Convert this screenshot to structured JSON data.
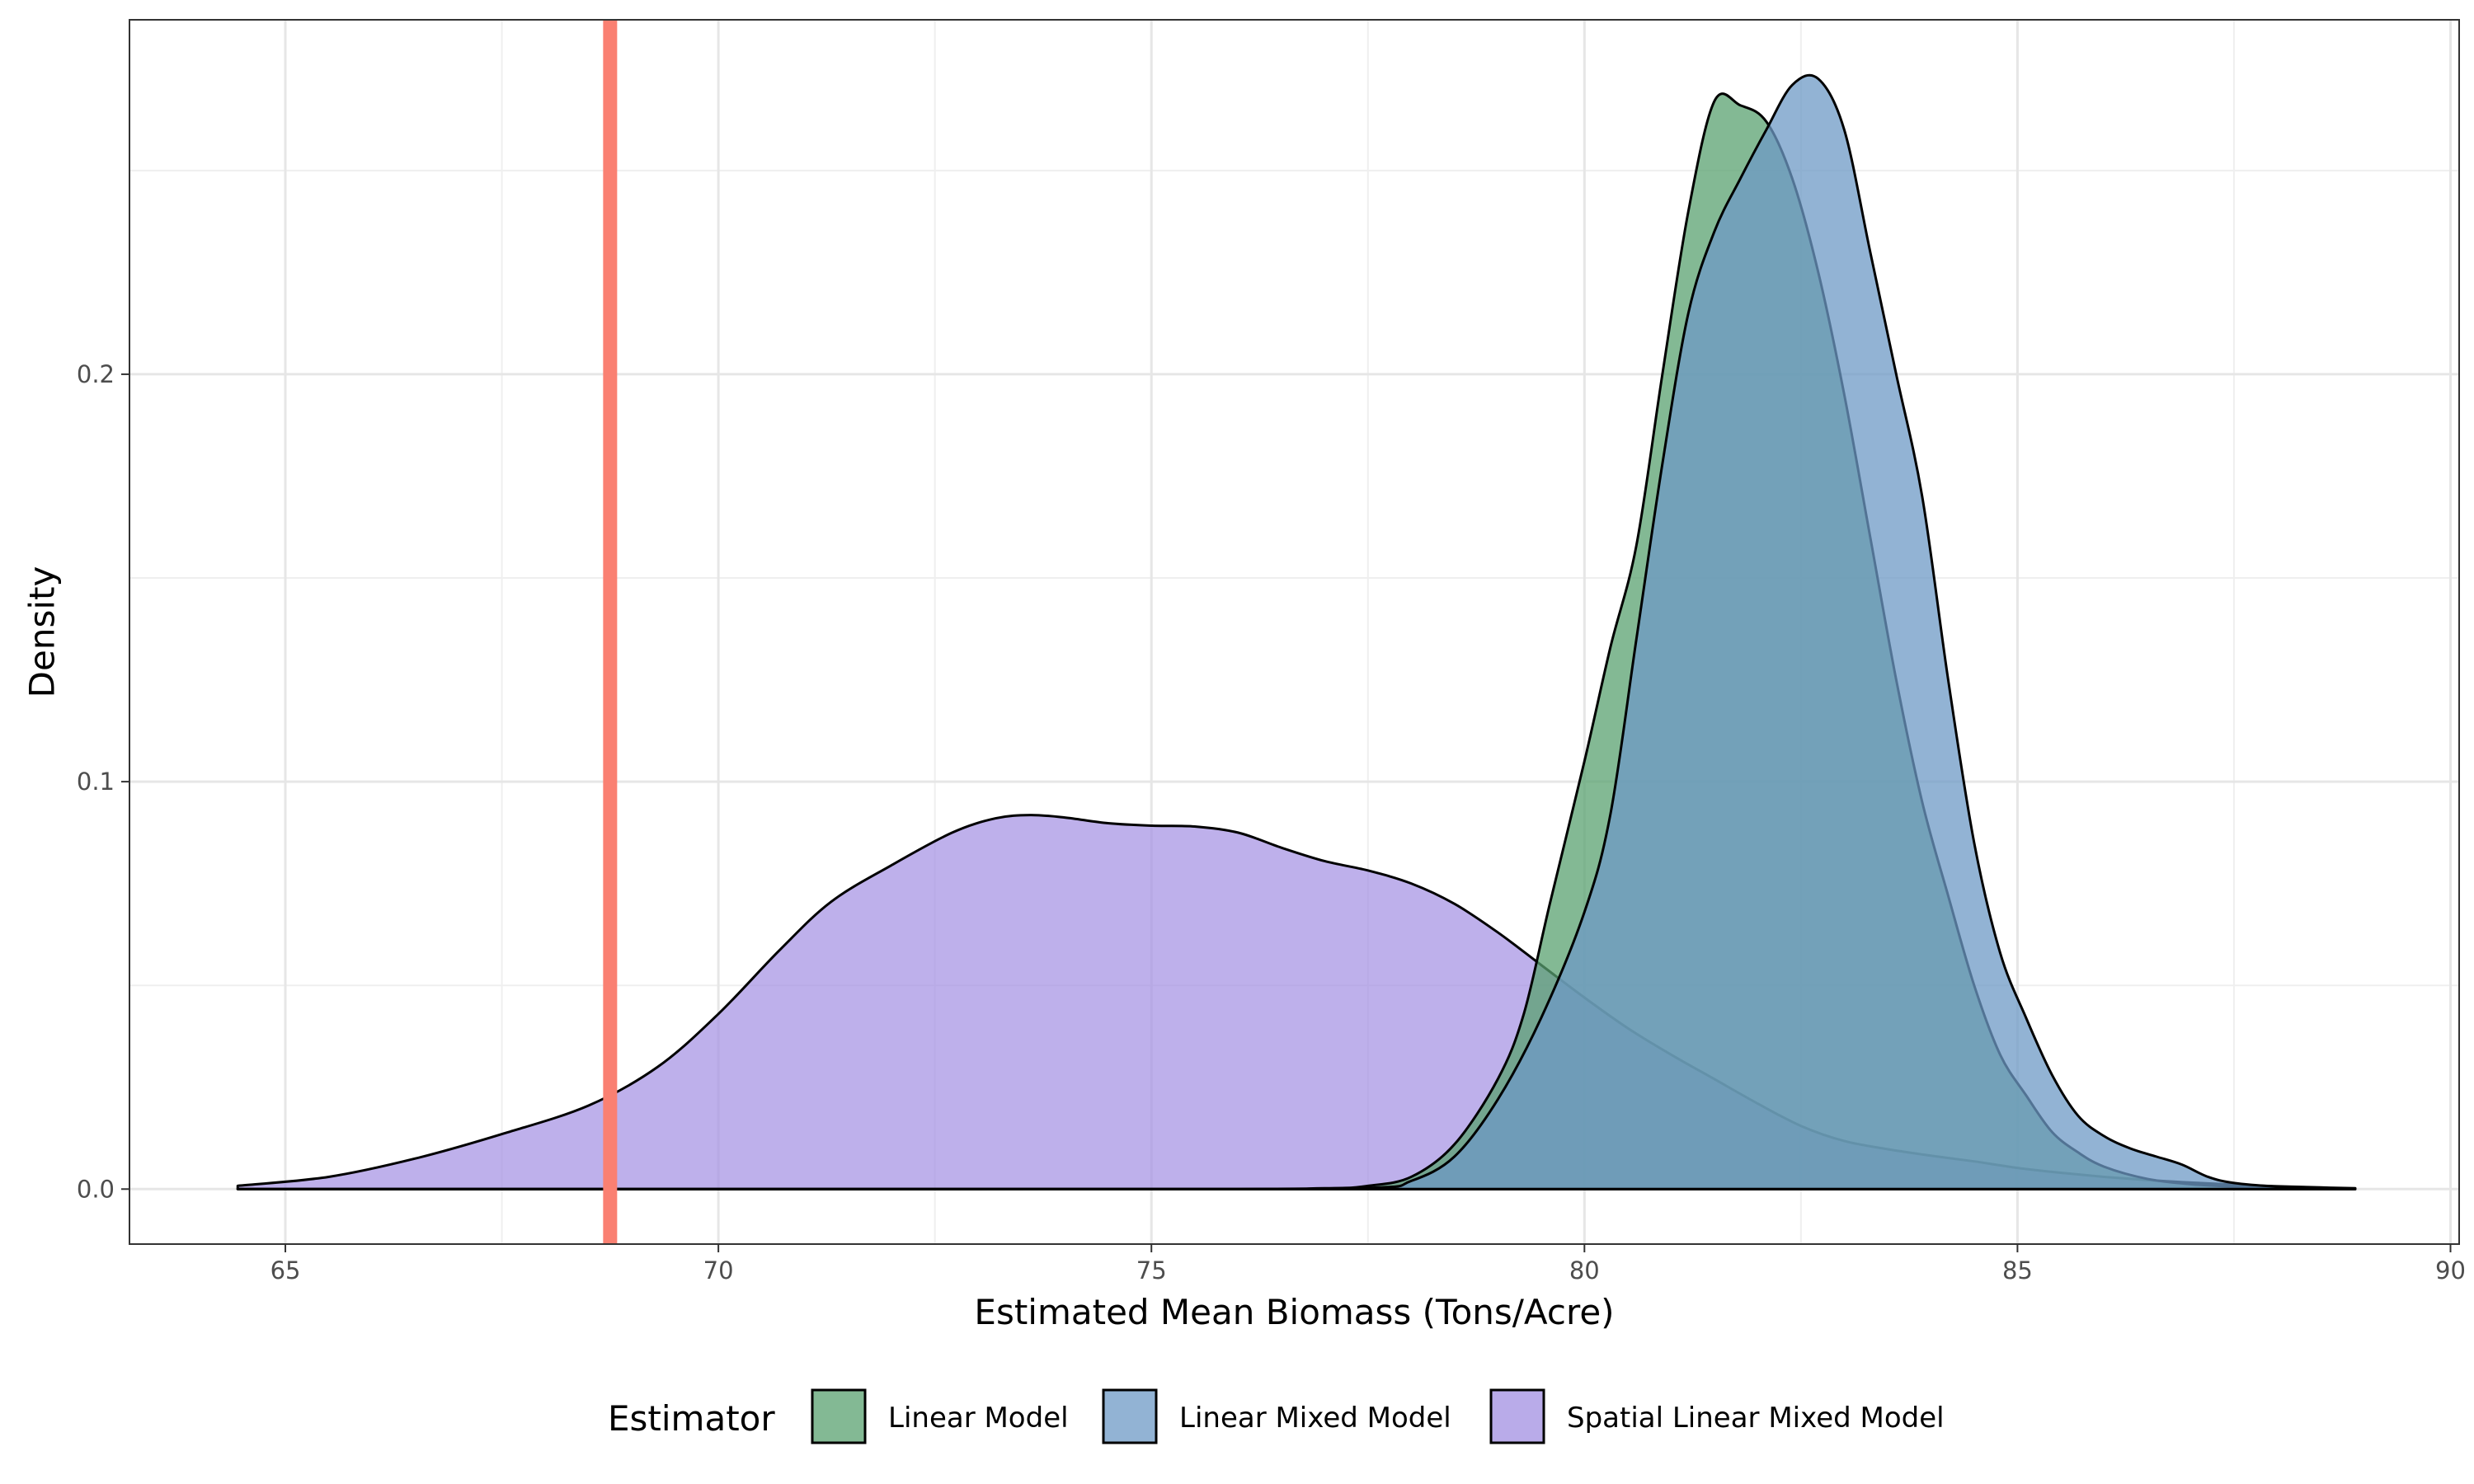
{
  "chart_data": {
    "type": "area",
    "xlabel": "Estimated Mean Biomass (Tons/Acre)",
    "ylabel": "Density",
    "xlim": [
      63.2,
      90.1
    ],
    "ylim": [
      -0.0135,
      0.287
    ],
    "x_ticks": [
      65,
      70,
      75,
      80,
      85,
      90
    ],
    "x_tick_labels": [
      "65",
      "70",
      "75",
      "80",
      "85",
      "90"
    ],
    "y_ticks": [
      0.0,
      0.1,
      0.2
    ],
    "y_tick_labels": [
      "0.0",
      "0.1",
      "0.2"
    ],
    "x_minor_ticks": [
      67.5,
      72.5,
      77.5,
      82.5,
      87.5
    ],
    "y_minor_ticks": [
      0.05,
      0.15,
      0.25
    ],
    "grid": true,
    "reference_line": {
      "x": 68.75,
      "color": "#fa8072"
    },
    "legend": {
      "title": "Estimator",
      "placement": "bottom",
      "entries": [
        {
          "label": "Linear Model",
          "color": "#59a170"
        },
        {
          "label": "Linear Mixed Model",
          "color": "#6d99c5"
        },
        {
          "label": "Spatial Linear Mixed Model",
          "color": "#a28fe2"
        }
      ]
    },
    "series": [
      {
        "name": "Spatial Linear Mixed Model",
        "color": "#a28fe2",
        "opacity": 0.7,
        "x": [
          64.45,
          65.5,
          66.5,
          67.5,
          68.5,
          69.3,
          70.0,
          70.7,
          71.3,
          72.0,
          72.7,
          73.2,
          73.6,
          74.0,
          74.5,
          75.0,
          75.5,
          76.0,
          76.5,
          77.0,
          77.5,
          78.0,
          78.5,
          79.0,
          79.5,
          80.0,
          80.5,
          81.0,
          81.5,
          82.0,
          82.5,
          83.0,
          83.5,
          84.0,
          84.5,
          85.0,
          85.5,
          86.0,
          86.5,
          87.0,
          87.5,
          88.0,
          88.5,
          88.9
        ],
        "y": [
          0.0008,
          0.003,
          0.0075,
          0.0135,
          0.0205,
          0.03,
          0.043,
          0.0585,
          0.0705,
          0.0795,
          0.0875,
          0.091,
          0.0918,
          0.0912,
          0.0898,
          0.0892,
          0.089,
          0.0875,
          0.0838,
          0.0805,
          0.0782,
          0.075,
          0.07,
          0.063,
          0.055,
          0.047,
          0.0395,
          0.033,
          0.027,
          0.021,
          0.0155,
          0.0118,
          0.0098,
          0.0082,
          0.0068,
          0.0052,
          0.004,
          0.003,
          0.0022,
          0.0016,
          0.0011,
          0.0007,
          0.0004,
          0.0002
        ]
      },
      {
        "name": "Linear Model",
        "color": "#59a170",
        "opacity": 0.75,
        "x": [
          64.45,
          75.0,
          77.0,
          77.5,
          78.0,
          78.5,
          79.0,
          79.3,
          79.6,
          80.0,
          80.3,
          80.6,
          80.9,
          81.2,
          81.5,
          81.8,
          82.1,
          82.4,
          82.7,
          83.0,
          83.3,
          83.6,
          83.9,
          84.2,
          84.5,
          84.8,
          85.1,
          85.4,
          85.7,
          86.0,
          86.5,
          87.0,
          87.5,
          88.0,
          88.5,
          88.9
        ],
        "y": [
          0.0,
          0.0,
          0.0002,
          0.0008,
          0.003,
          0.011,
          0.027,
          0.043,
          0.07,
          0.105,
          0.133,
          0.158,
          0.2,
          0.24,
          0.267,
          0.266,
          0.262,
          0.248,
          0.225,
          0.195,
          0.16,
          0.125,
          0.095,
          0.072,
          0.05,
          0.033,
          0.023,
          0.014,
          0.009,
          0.0055,
          0.0025,
          0.0012,
          0.0006,
          0.0003,
          0.0001,
          0.0
        ]
      },
      {
        "name": "Linear Mixed Model",
        "color": "#6d99c5",
        "opacity": 0.75,
        "x": [
          64.45,
          75.0,
          77.5,
          78.0,
          78.5,
          79.0,
          79.5,
          80.0,
          80.3,
          80.6,
          80.9,
          81.2,
          81.5,
          81.8,
          82.1,
          82.4,
          82.7,
          83.0,
          83.3,
          83.6,
          83.9,
          84.2,
          84.5,
          84.8,
          85.1,
          85.4,
          85.7,
          86.0,
          86.3,
          86.6,
          86.9,
          87.2,
          87.5,
          88.0,
          88.5,
          88.9
        ],
        "y": [
          0.0,
          0.0,
          0.0003,
          0.002,
          0.008,
          0.022,
          0.042,
          0.068,
          0.092,
          0.135,
          0.178,
          0.215,
          0.235,
          0.248,
          0.26,
          0.271,
          0.2725,
          0.26,
          0.23,
          0.2,
          0.17,
          0.125,
          0.085,
          0.058,
          0.042,
          0.028,
          0.018,
          0.013,
          0.01,
          0.008,
          0.006,
          0.003,
          0.0015,
          0.0006,
          0.0002,
          0.0
        ]
      }
    ]
  }
}
